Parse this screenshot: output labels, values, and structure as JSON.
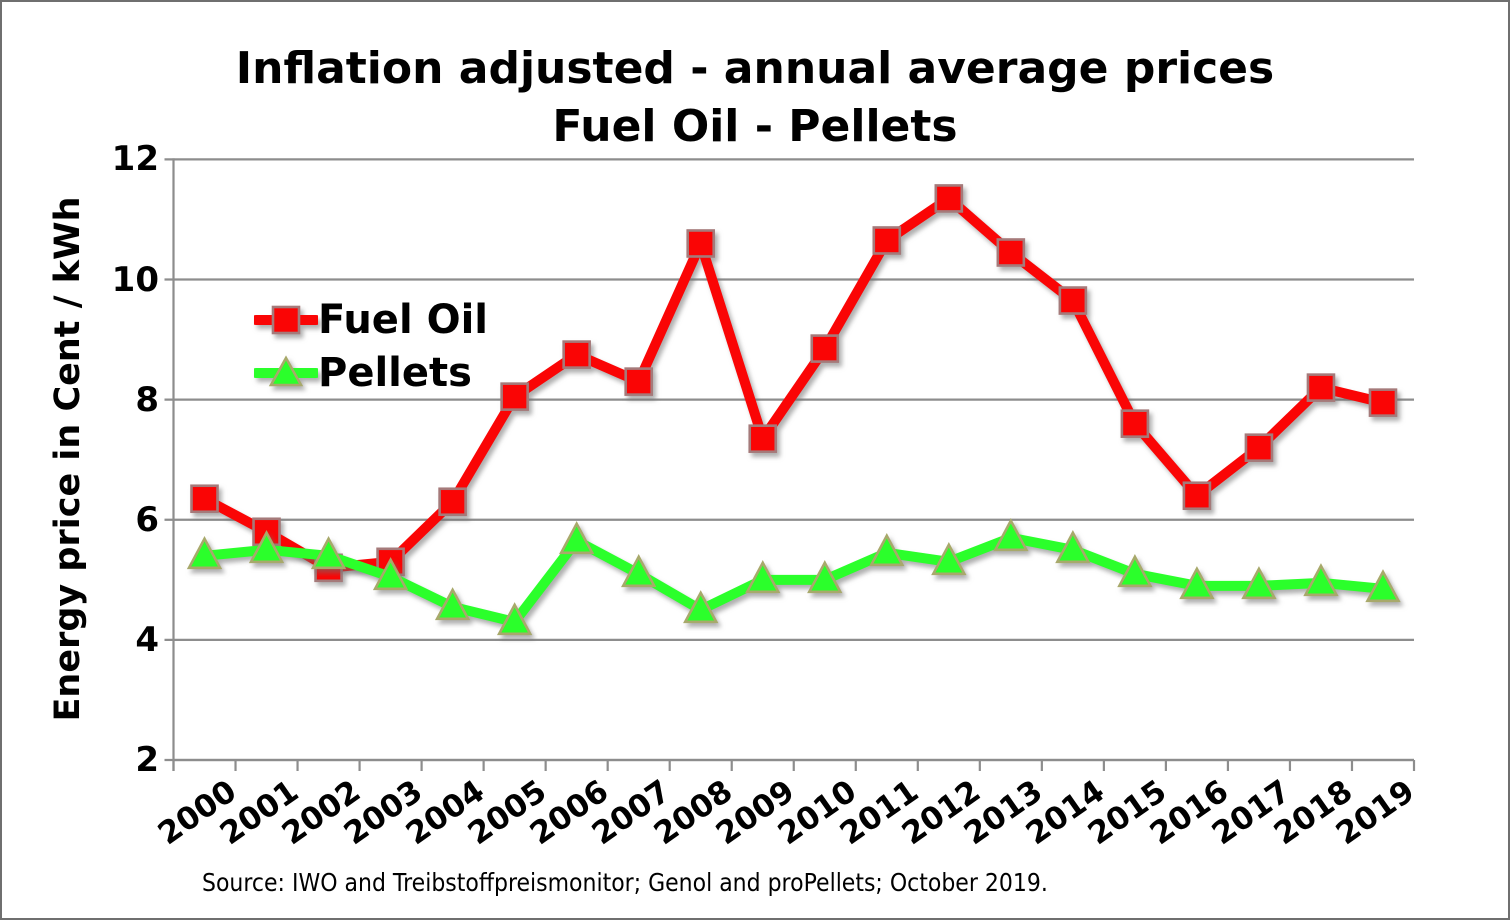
{
  "title": {
    "line1": "Inflation adjusted - annual average prices",
    "line2": "Fuel Oil - Pellets"
  },
  "y_axis": {
    "label": "Energy price in Cent / kWh"
  },
  "legend": {
    "items": [
      {
        "label": "Fuel Oil",
        "marker": "square"
      },
      {
        "label": "Pellets",
        "marker": "triangle"
      }
    ]
  },
  "source": {
    "text": "Source: IWO and Treibstoffpreismonitor; Genol and proPellets; October 2019."
  },
  "colors": {
    "fuel_oil": "#fa0505",
    "fuel_oil_marker_border": "#a57a7a",
    "pellets": "#2bff2b",
    "pellets_marker_border": "#a8a96b",
    "grid": "#8d8d8d",
    "text": "#000000"
  },
  "chart_data": {
    "type": "line",
    "title": "Inflation adjusted - annual average prices Fuel Oil - Pellets",
    "categories": [
      "2000",
      "2001",
      "2002",
      "2003",
      "2004",
      "2005",
      "2006",
      "2007",
      "2008",
      "2009",
      "2010",
      "2011",
      "2012",
      "2013",
      "2014",
      "2015",
      "2016",
      "2017",
      "2018",
      "2019"
    ],
    "series": [
      {
        "name": "Fuel Oil",
        "marker": "square",
        "color": "#fa0505",
        "marker_border": "#a57a7a",
        "values": [
          6.35,
          5.8,
          5.2,
          5.3,
          6.3,
          8.05,
          8.75,
          8.3,
          10.6,
          7.35,
          8.85,
          10.65,
          11.35,
          10.45,
          9.65,
          7.6,
          6.4,
          7.2,
          8.2,
          7.95
        ]
      },
      {
        "name": "Pellets",
        "marker": "triangle",
        "color": "#2bff2b",
        "marker_border": "#a8a96b",
        "values": [
          5.4,
          5.5,
          5.4,
          5.05,
          4.55,
          4.3,
          5.65,
          5.1,
          4.5,
          5.0,
          5.0,
          5.45,
          5.3,
          5.7,
          5.5,
          5.1,
          4.9,
          4.9,
          4.95,
          4.85
        ]
      }
    ],
    "xlabel": "",
    "ylabel": "Energy price in Cent / kWh",
    "yticks": [
      2,
      4,
      6,
      8,
      10,
      12
    ],
    "ylim": [
      2,
      12
    ],
    "grid": "horizontal-only",
    "legend_position": "inside-upper-left"
  }
}
